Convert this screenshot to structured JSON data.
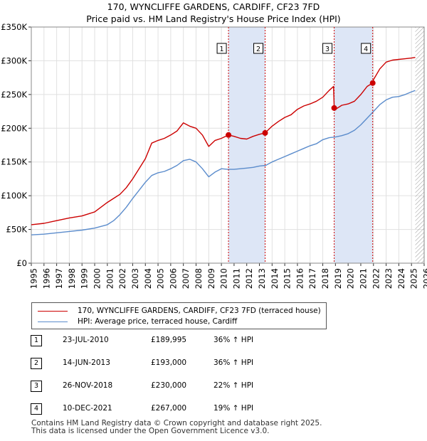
{
  "header": {
    "title": "170, WYNCLIFFE GARDENS, CARDIFF, CF23 7FD",
    "subtitle": "Price paid vs. HM Land Registry's House Price Index (HPI)"
  },
  "colors": {
    "property": "#cc0000",
    "hpi": "#5b8ccc",
    "shade": "#dde6f6",
    "grid": "#e0e0e0"
  },
  "chart_data": {
    "type": "line",
    "title": "Price paid vs. HM Land Registry's House Price Index (HPI)",
    "xlabel": "",
    "ylabel": "",
    "xlim": [
      1995,
      2026
    ],
    "ylim": [
      0,
      350000
    ],
    "x_ticks": [
      "1995",
      "1996",
      "1997",
      "1998",
      "1999",
      "2000",
      "2001",
      "2002",
      "2003",
      "2004",
      "2005",
      "2006",
      "2007",
      "2008",
      "2009",
      "2010",
      "2011",
      "2012",
      "2013",
      "2014",
      "2015",
      "2016",
      "2017",
      "2018",
      "2019",
      "2020",
      "2021",
      "2022",
      "2023",
      "2024",
      "2025",
      "2026"
    ],
    "y_ticks": [
      {
        "value": 0,
        "label": "£0"
      },
      {
        "value": 50000,
        "label": "£50K"
      },
      {
        "value": 100000,
        "label": "£100K"
      },
      {
        "value": 150000,
        "label": "£150K"
      },
      {
        "value": 200000,
        "label": "£200K"
      },
      {
        "value": 250000,
        "label": "£250K"
      },
      {
        "value": 300000,
        "label": "£300K"
      },
      {
        "value": 350000,
        "label": "£350K"
      }
    ],
    "series": [
      {
        "name": "170, WYNCLIFFE GARDENS, CARDIFF, CF23 7FD (terraced house)",
        "color": "#cc0000",
        "x": [
          1995,
          1996,
          1997,
          1998,
          1999,
          2000,
          2001,
          2001.5,
          2002,
          2002.5,
          2003,
          2003.5,
          2004,
          2004.5,
          2005,
          2005.5,
          2006,
          2006.5,
          2007,
          2007.5,
          2008,
          2008.5,
          2009,
          2009.5,
          2010,
          2010.56,
          2011,
          2011.5,
          2012,
          2012.5,
          2013,
          2013.45,
          2014,
          2014.5,
          2015,
          2015.5,
          2016,
          2016.5,
          2017,
          2017.5,
          2018,
          2018.5,
          2018.85,
          2018.9,
          2019,
          2019.5,
          2020,
          2020.5,
          2021,
          2021.5,
          2021.94,
          2022,
          2022.5,
          2023,
          2023.5,
          2024,
          2024.5,
          2025,
          2025.3
        ],
        "values": [
          57000,
          59000,
          63000,
          67000,
          70000,
          76000,
          90000,
          96000,
          102000,
          112000,
          125000,
          140000,
          155000,
          178000,
          182000,
          185000,
          190000,
          196000,
          208000,
          203000,
          200000,
          190000,
          173000,
          182000,
          185000,
          189995,
          188000,
          185000,
          184000,
          188000,
          191000,
          193000,
          203000,
          210000,
          216000,
          220000,
          228000,
          233000,
          236000,
          240000,
          246000,
          256000,
          262000,
          230000,
          228000,
          234000,
          236000,
          240000,
          250000,
          262000,
          267000,
          272000,
          288000,
          298000,
          301000,
          302000,
          303000,
          304000,
          305000
        ]
      },
      {
        "name": "HPI: Average price, terraced house, Cardiff",
        "color": "#5b8ccc",
        "x": [
          1995,
          1996,
          1997,
          1998,
          1999,
          2000,
          2001,
          2001.5,
          2002,
          2002.5,
          2003,
          2003.5,
          2004,
          2004.5,
          2005,
          2005.5,
          2006,
          2006.5,
          2007,
          2007.5,
          2008,
          2008.5,
          2009,
          2009.5,
          2010,
          2010.5,
          2011,
          2011.5,
          2012,
          2012.5,
          2013,
          2013.5,
          2014,
          2014.5,
          2015,
          2015.5,
          2016,
          2016.5,
          2017,
          2017.5,
          2018,
          2018.5,
          2019,
          2019.5,
          2020,
          2020.5,
          2021,
          2021.5,
          2022,
          2022.5,
          2023,
          2023.5,
          2024,
          2024.5,
          2025,
          2025.3
        ],
        "values": [
          42000,
          43000,
          45000,
          47000,
          49000,
          52000,
          57000,
          63000,
          72000,
          83000,
          96000,
          108000,
          120000,
          130000,
          134000,
          136000,
          140000,
          145000,
          152000,
          154000,
          150000,
          140000,
          128000,
          135000,
          140000,
          139000,
          139000,
          140000,
          141000,
          142000,
          144000,
          145000,
          150000,
          154000,
          158000,
          162000,
          166000,
          170000,
          174000,
          177000,
          183000,
          186000,
          187000,
          189000,
          192000,
          197000,
          205000,
          215000,
          225000,
          235000,
          242000,
          246000,
          247000,
          250000,
          254000,
          256000
        ]
      }
    ],
    "sale_points": [
      {
        "label": "1",
        "x": 2010.56,
        "value": 189995
      },
      {
        "label": "2",
        "x": 2013.45,
        "value": 193000
      },
      {
        "label": "3",
        "x": 2018.9,
        "value": 230000
      },
      {
        "label": "4",
        "x": 2021.94,
        "value": 267000
      }
    ],
    "shaded_periods": [
      [
        2010.56,
        2013.45
      ],
      [
        2018.9,
        2021.94
      ]
    ],
    "hatched_from": 2025.3
  },
  "legend": {
    "items": [
      {
        "label": "170, WYNCLIFFE GARDENS, CARDIFF, CF23 7FD (terraced house)"
      },
      {
        "label": "HPI: Average price, terraced house, Cardiff"
      }
    ]
  },
  "sales": [
    {
      "num": "1",
      "date": "23-JUL-2010",
      "price": "£189,995",
      "hpi": "36% ↑ HPI"
    },
    {
      "num": "2",
      "date": "14-JUN-2013",
      "price": "£193,000",
      "hpi": "36% ↑ HPI"
    },
    {
      "num": "3",
      "date": "26-NOV-2018",
      "price": "£230,000",
      "hpi": "22% ↑ HPI"
    },
    {
      "num": "4",
      "date": "10-DEC-2021",
      "price": "£267,000",
      "hpi": "19% ↑ HPI"
    }
  ],
  "footer": {
    "line1": "Contains HM Land Registry data © Crown copyright and database right 2025.",
    "line2": "This data is licensed under the Open Government Licence v3.0."
  }
}
